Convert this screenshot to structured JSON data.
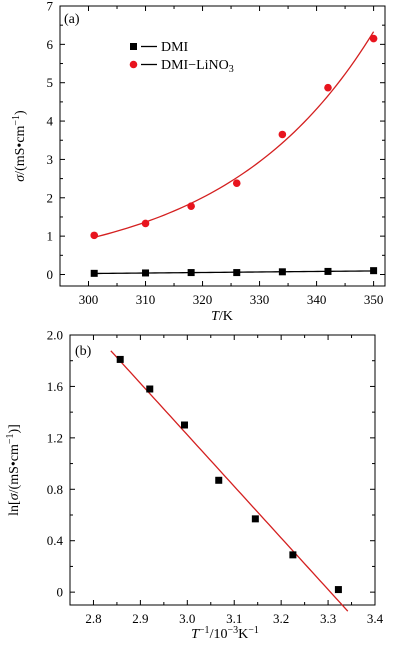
{
  "chart_data": [
    {
      "type": "scatter",
      "panel_label": "(a)",
      "xlabel_italic": "T",
      "xlabel_rest": "/K",
      "ylabel_italic": "σ",
      "ylabel_rest": "/(mS•cm",
      "ylabel_sup": "−1",
      "ylabel_end": ")",
      "xlim": [
        295,
        352
      ],
      "ylim": [
        -0.3,
        7
      ],
      "xticks": [
        300,
        310,
        320,
        330,
        340,
        350
      ],
      "yticks": [
        0,
        1,
        2,
        3,
        4,
        5,
        6,
        7
      ],
      "legend_position": "upper-left",
      "series": [
        {
          "name": "DMI",
          "marker": "square",
          "color": "#000000",
          "line_color": "#000000",
          "x": [
            301,
            310,
            318,
            326,
            334,
            342,
            350
          ],
          "y": [
            0.03,
            0.04,
            0.05,
            0.05,
            0.07,
            0.08,
            0.1
          ],
          "fit": "linear"
        },
        {
          "name_main": "DMI−LiNO",
          "name_sub": "3",
          "marker": "circle",
          "color": "#e8141e",
          "line_color": "#d42020",
          "x": [
            301,
            310,
            318,
            326,
            334,
            342,
            350
          ],
          "y": [
            1.02,
            1.33,
            1.78,
            2.38,
            3.65,
            4.87,
            6.15
          ],
          "fit": "exponential"
        }
      ]
    },
    {
      "type": "scatter",
      "panel_label": "(b)",
      "xlabel_italic": "T",
      "xlabel_sup": "−1",
      "xlabel_rest": "/10",
      "xlabel_sup2": "−3",
      "xlabel_end": "K",
      "xlabel_sup3": "−1",
      "ylabel_prefix": "ln[",
      "ylabel_italic": "σ",
      "ylabel_rest": "/(mS•cm",
      "ylabel_sup": "−1",
      "ylabel_end": ")]",
      "xlim": [
        2.75,
        3.4
      ],
      "ylim": [
        -0.1,
        2.0
      ],
      "xticks": [
        2.8,
        2.9,
        3.0,
        3.1,
        3.2,
        3.3,
        3.4
      ],
      "xtick_labels": [
        "2.8",
        "2.9",
        "3.0",
        "3.1",
        "3.2",
        "3.3",
        "3.4"
      ],
      "yticks": [
        0,
        0.4,
        0.8,
        1.2,
        1.6,
        2.0
      ],
      "ytick_labels": [
        "0",
        "0.4",
        "0.8",
        "1.2",
        "1.6",
        "2.0"
      ],
      "series": [
        {
          "marker": "square",
          "color": "#000000",
          "line_color": "#d42020",
          "x": [
            2.857,
            2.92,
            2.994,
            3.067,
            3.145,
            3.225,
            3.322
          ],
          "y": [
            1.81,
            1.58,
            1.3,
            0.87,
            0.57,
            0.29,
            0.02
          ],
          "fit": "linear"
        }
      ]
    }
  ]
}
